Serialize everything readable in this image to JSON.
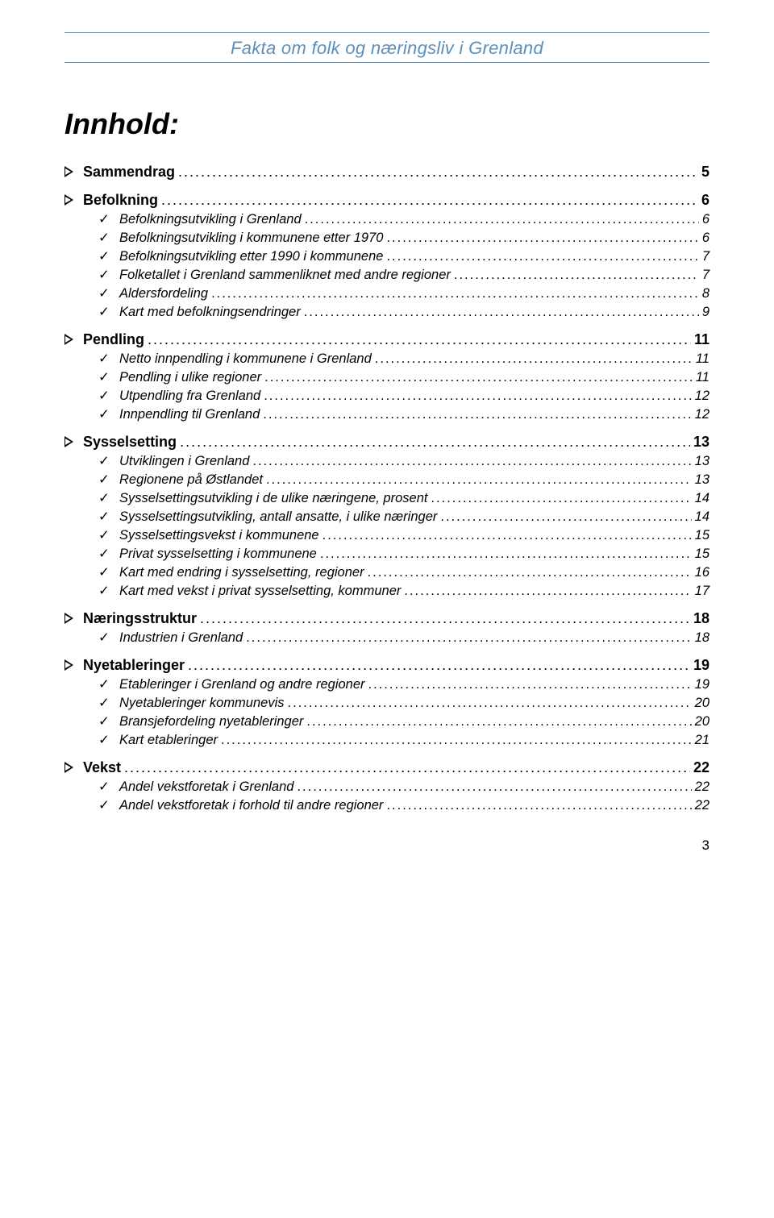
{
  "header": {
    "title": "Fakta om folk og næringsliv i Grenland",
    "color": "#5b8fb9"
  },
  "title": "Innhold:",
  "page_number": "3",
  "toc": [
    {
      "level": "section",
      "label": "Sammendrag",
      "page": "5"
    },
    {
      "level": "section",
      "label": "Befolkning",
      "page": "6"
    },
    {
      "level": "sub",
      "label": "Befolkningsutvikling i Grenland",
      "page": "6"
    },
    {
      "level": "sub",
      "label": "Befolkningsutvikling i kommunene etter 1970",
      "page": "6"
    },
    {
      "level": "sub",
      "label": "Befolkningsutvikling etter 1990 i kommunene",
      "page": "7"
    },
    {
      "level": "sub",
      "label": "Folketallet i Grenland sammenliknet med andre regioner",
      "page": "7"
    },
    {
      "level": "sub",
      "label": "Aldersfordeling",
      "page": "8"
    },
    {
      "level": "sub",
      "label": "Kart med befolkningsendringer",
      "page": "9"
    },
    {
      "level": "section",
      "label": "Pendling",
      "page": "11"
    },
    {
      "level": "sub",
      "label": "Netto innpendling i kommunene i Grenland",
      "page": "11"
    },
    {
      "level": "sub",
      "label": "Pendling i ulike regioner",
      "page": "11"
    },
    {
      "level": "sub",
      "label": "Utpendling fra Grenland",
      "page": "12"
    },
    {
      "level": "sub",
      "label": "Innpendling til Grenland",
      "page": "12"
    },
    {
      "level": "section",
      "label": "Sysselsetting",
      "page": "13"
    },
    {
      "level": "sub",
      "label": "Utviklingen i Grenland",
      "page": "13"
    },
    {
      "level": "sub",
      "label": "Regionene på Østlandet",
      "page": "13"
    },
    {
      "level": "sub",
      "label": "Sysselsettingsutvikling i de ulike næringene, prosent",
      "page": "14"
    },
    {
      "level": "sub",
      "label": "Sysselsettingsutvikling, antall ansatte, i ulike næringer",
      "page": "14"
    },
    {
      "level": "sub",
      "label": "Sysselsettingsvekst i kommunene",
      "page": "15"
    },
    {
      "level": "sub",
      "label": "Privat sysselsetting i kommunene",
      "page": "15"
    },
    {
      "level": "sub",
      "label": "Kart med endring i sysselsetting, regioner",
      "page": "16"
    },
    {
      "level": "sub",
      "label": "Kart med vekst i privat sysselsetting, kommuner",
      "page": "17"
    },
    {
      "level": "section",
      "label": "Næringsstruktur",
      "page": "18"
    },
    {
      "level": "sub",
      "label": "Industrien i Grenland",
      "page": "18"
    },
    {
      "level": "section",
      "label": "Nyetableringer",
      "page": "19"
    },
    {
      "level": "sub",
      "label": "Etableringer i Grenland og andre regioner",
      "page": "19"
    },
    {
      "level": "sub",
      "label": "Nyetableringer kommunevis",
      "page": "20"
    },
    {
      "level": "sub",
      "label": "Bransjefordeling nyetableringer",
      "page": "20"
    },
    {
      "level": "sub",
      "label": "Kart etableringer",
      "page": "21"
    },
    {
      "level": "section",
      "label": "Vekst",
      "page": "22"
    },
    {
      "level": "sub",
      "label": "Andel vekstforetak i Grenland",
      "page": "22"
    },
    {
      "level": "sub",
      "label": "Andel vekstforetak i forhold til andre regioner",
      "page": "22"
    }
  ]
}
